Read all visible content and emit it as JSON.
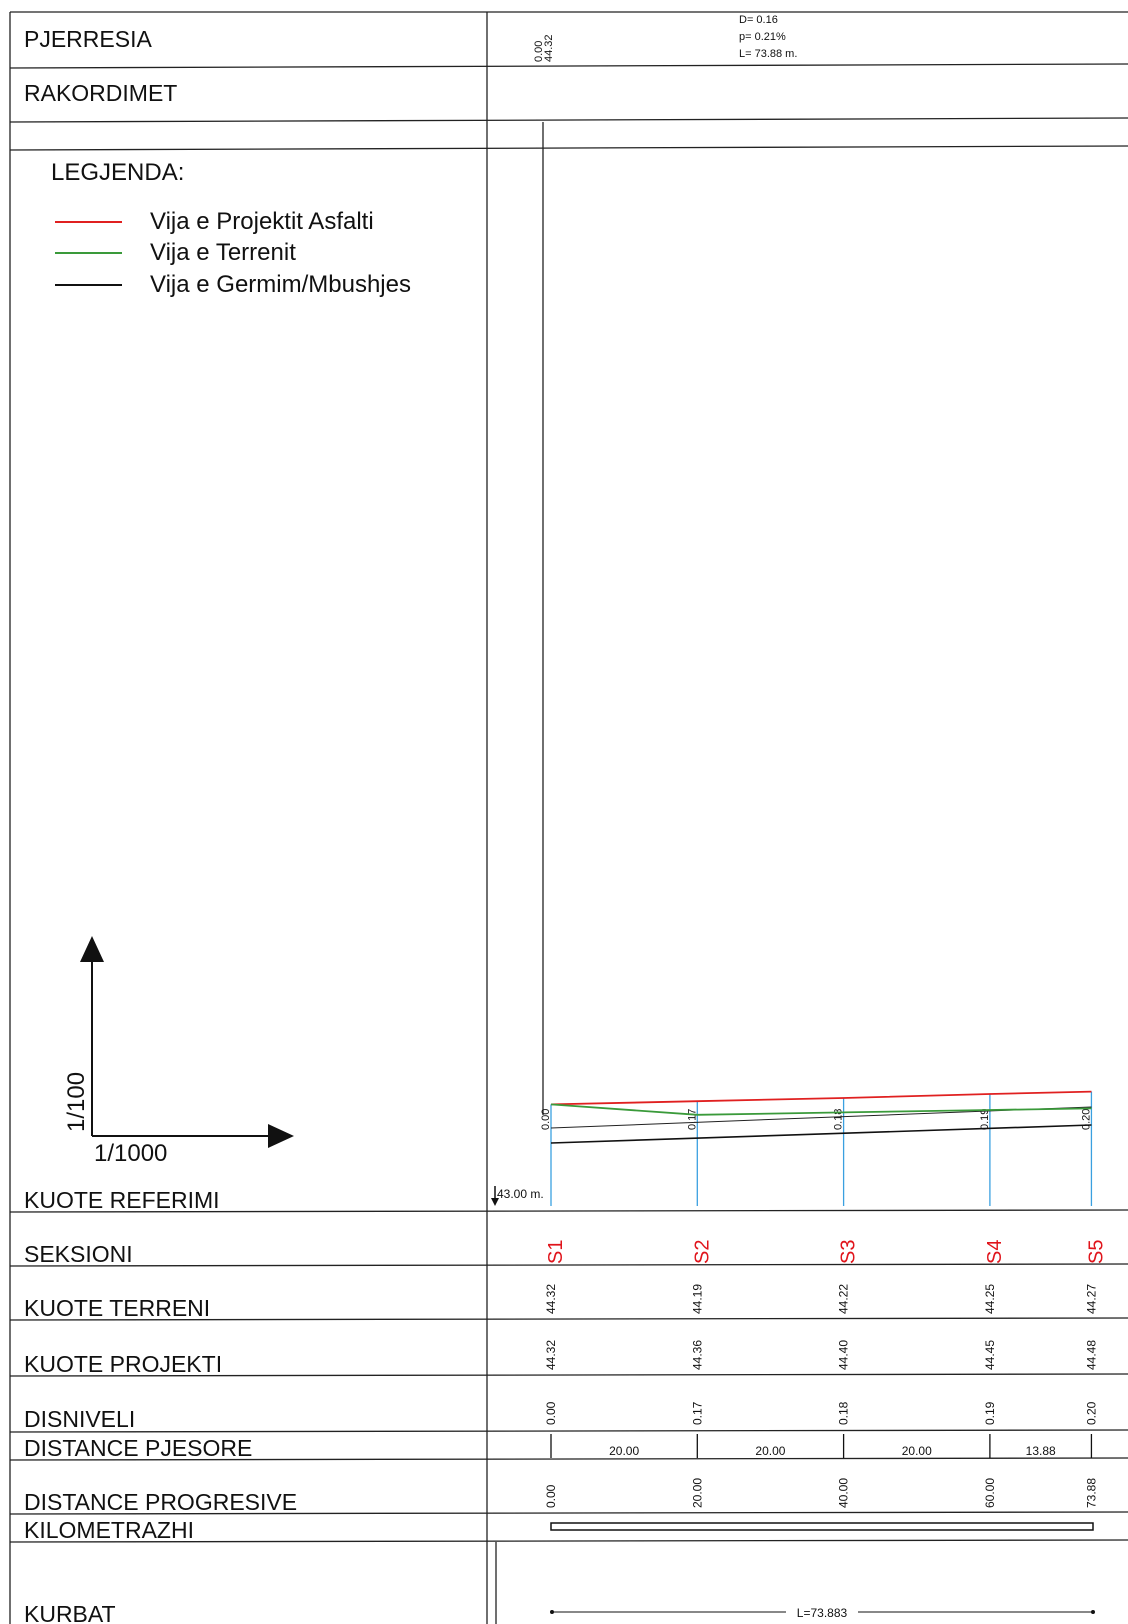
{
  "header": {
    "pjerresia_label": "PJERRESIA",
    "rakordimet_label": "RAKORDIMET",
    "start_value": "0.00",
    "start_elev": "44.32",
    "slope_info": [
      "D= 0.16",
      "p= 0.21%",
      "L= 73.88 m."
    ]
  },
  "legend": {
    "title": "LEGJENDA:",
    "items": [
      {
        "label": "Vija e Projektit Asfalti",
        "color": "#e02020"
      },
      {
        "label": "Vija e Terrenit",
        "color": "#3a9a3a"
      },
      {
        "label": "Vija e Germim/Mbushjes",
        "color": "#111111"
      }
    ]
  },
  "scale": {
    "vertical": "1/100",
    "horizontal": "1/1000"
  },
  "reference": {
    "value": "43.00 m."
  },
  "rows": {
    "kuote_referimi": "KUOTE REFERIMI",
    "seksioni": "SEKSIONI",
    "kuote_terreni": "KUOTE TERRENI",
    "kuote_projekti": "KUOTE PROJEKTI",
    "disniveli": "DISNIVELI",
    "distance_pjesore": "DISTANCE PJESORE",
    "distance_progresive": "DISTANCE PROGRESIVE",
    "kilometrazhi": "KILOMETRAZHI",
    "kurbat": "KURBAT"
  },
  "chart_data": {
    "type": "line",
    "x": [
      0,
      20,
      40,
      60,
      73.88
    ],
    "sections": [
      "S1",
      "S2",
      "S3",
      "S4",
      "S5"
    ],
    "terrain_elev": [
      "44.32",
      "44.19",
      "44.22",
      "44.25",
      "44.27"
    ],
    "project_elev": [
      "44.32",
      "44.36",
      "44.40",
      "44.45",
      "44.48"
    ],
    "difference": [
      "0.00",
      "0.17",
      "0.18",
      "0.19",
      "0.20"
    ],
    "partial_distances": [
      "20.00",
      "20.00",
      "20.00",
      "13.88"
    ],
    "progressive_distances": [
      "0.00",
      "20.00",
      "40.00",
      "60.00",
      "73.88"
    ],
    "curve_label": "L=73.883",
    "series": [
      {
        "name": "Vija e Projektit Asfalti",
        "color": "#e02020",
        "values": [
          44.32,
          44.36,
          44.4,
          44.45,
          44.48
        ]
      },
      {
        "name": "Vija e Terrenit",
        "color": "#3a9a3a",
        "values": [
          44.32,
          44.19,
          44.22,
          44.25,
          44.27
        ]
      }
    ]
  }
}
